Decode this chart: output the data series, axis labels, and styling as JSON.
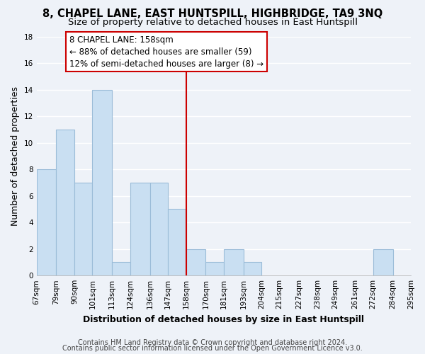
{
  "title": "8, CHAPEL LANE, EAST HUNTSPILL, HIGHBRIDGE, TA9 3NQ",
  "subtitle": "Size of property relative to detached houses in East Huntspill",
  "xlabel": "Distribution of detached houses by size in East Huntspill",
  "ylabel": "Number of detached properties",
  "bin_edges": [
    67,
    79,
    90,
    101,
    113,
    124,
    136,
    147,
    158,
    170,
    181,
    193,
    204,
    215,
    227,
    238,
    249,
    261,
    272,
    284,
    295
  ],
  "bin_labels": [
    "67sqm",
    "79sqm",
    "90sqm",
    "101sqm",
    "113sqm",
    "124sqm",
    "136sqm",
    "147sqm",
    "158sqm",
    "170sqm",
    "181sqm",
    "193sqm",
    "204sqm",
    "215sqm",
    "227sqm",
    "238sqm",
    "249sqm",
    "261sqm",
    "272sqm",
    "284sqm",
    "295sqm"
  ],
  "counts": [
    8,
    11,
    7,
    14,
    1,
    7,
    7,
    5,
    2,
    1,
    2,
    1,
    0,
    0,
    0,
    0,
    0,
    0,
    2,
    0
  ],
  "bar_color": "#c9dff2",
  "bar_edge_color": "#9bbcd8",
  "vline_x": 158,
  "vline_color": "#cc0000",
  "annotation_title": "8 CHAPEL LANE: 158sqm",
  "annotation_line1": "← 88% of detached houses are smaller (59)",
  "annotation_line2": "12% of semi-detached houses are larger (8) →",
  "annotation_box_color": "#ffffff",
  "annotation_box_edge": "#cc0000",
  "ylim": [
    0,
    18
  ],
  "yticks": [
    0,
    2,
    4,
    6,
    8,
    10,
    12,
    14,
    16,
    18
  ],
  "footer1": "Contains HM Land Registry data © Crown copyright and database right 2024.",
  "footer2": "Contains public sector information licensed under the Open Government Licence v3.0.",
  "background_color": "#eef2f8",
  "grid_color": "#ffffff",
  "title_fontsize": 10.5,
  "subtitle_fontsize": 9.5,
  "axis_label_fontsize": 9,
  "tick_fontsize": 7.5,
  "footer_fontsize": 7,
  "ann_fontsize": 8.5
}
